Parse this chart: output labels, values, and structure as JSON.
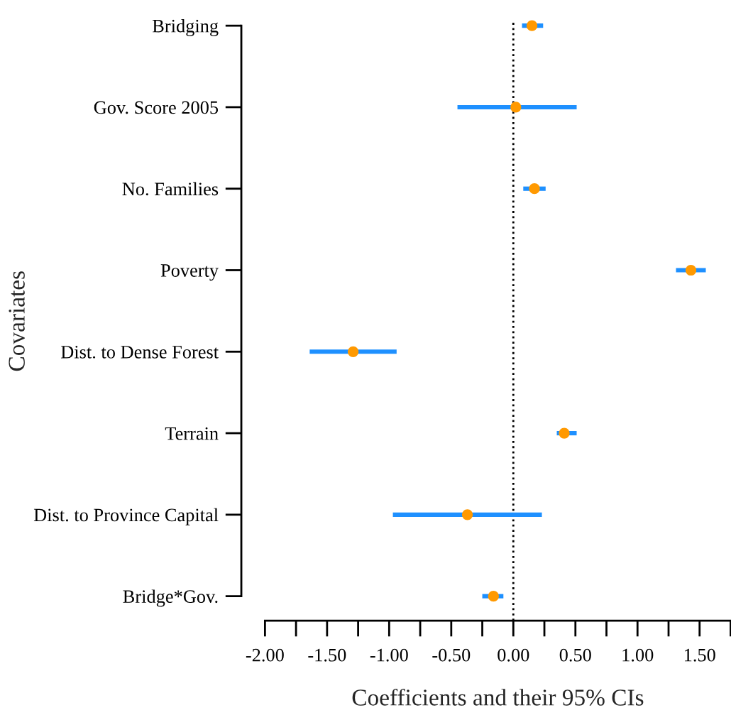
{
  "chart_data": {
    "type": "scatter",
    "orientation": "horizontal",
    "xlabel": "Coefficients and their 95% CIs",
    "ylabel": "Covariates",
    "categories": [
      "Bridging",
      "Gov. Score 2005",
      "No. Families",
      "Poverty",
      "Dist. to Dense Forest",
      "Terrain",
      "Dist. to Province Capital",
      "Bridge*Gov."
    ],
    "color": "#ff9900",
    "values": [
      0.15,
      0.02,
      0.17,
      1.43,
      -1.29,
      0.41,
      -0.37,
      -0.16
    ],
    "errors": [
      [
        0.07,
        0.24
      ],
      [
        -0.45,
        0.51
      ],
      [
        0.08,
        0.26
      ],
      [
        1.31,
        1.55
      ],
      [
        -1.64,
        -0.94
      ],
      [
        0.35,
        0.51
      ],
      [
        -0.97,
        0.23
      ],
      [
        -0.25,
        -0.08
      ]
    ],
    "xlim": [
      -2,
      1.75
    ],
    "xticks": [
      {
        "value": -2,
        "label": "-2.00"
      },
      {
        "value": -1.75,
        "label": null
      },
      {
        "value": -1.5,
        "label": "-1.50"
      },
      {
        "value": -1.25,
        "label": null
      },
      {
        "value": -1,
        "label": "-1.00"
      },
      {
        "value": -0.75,
        "label": null
      },
      {
        "value": -0.5,
        "label": "-0.50"
      },
      {
        "value": -0.25,
        "label": null
      },
      {
        "value": 0,
        "label": "0.00"
      },
      {
        "value": 0.25,
        "label": null
      },
      {
        "value": 0.5,
        "label": "0.50"
      },
      {
        "value": 0.75,
        "label": null
      },
      {
        "value": 1,
        "label": "1.00"
      },
      {
        "value": 1.25,
        "label": null
      },
      {
        "value": 1.5,
        "label": "1.50"
      },
      {
        "value": 1.75,
        "label": null
      }
    ],
    "ref_lines": [
      {
        "axis": "x",
        "value": 0,
        "color": "#000000",
        "line_style": "dotted"
      }
    ],
    "marker": "circle",
    "grid": false,
    "legend": false
  }
}
